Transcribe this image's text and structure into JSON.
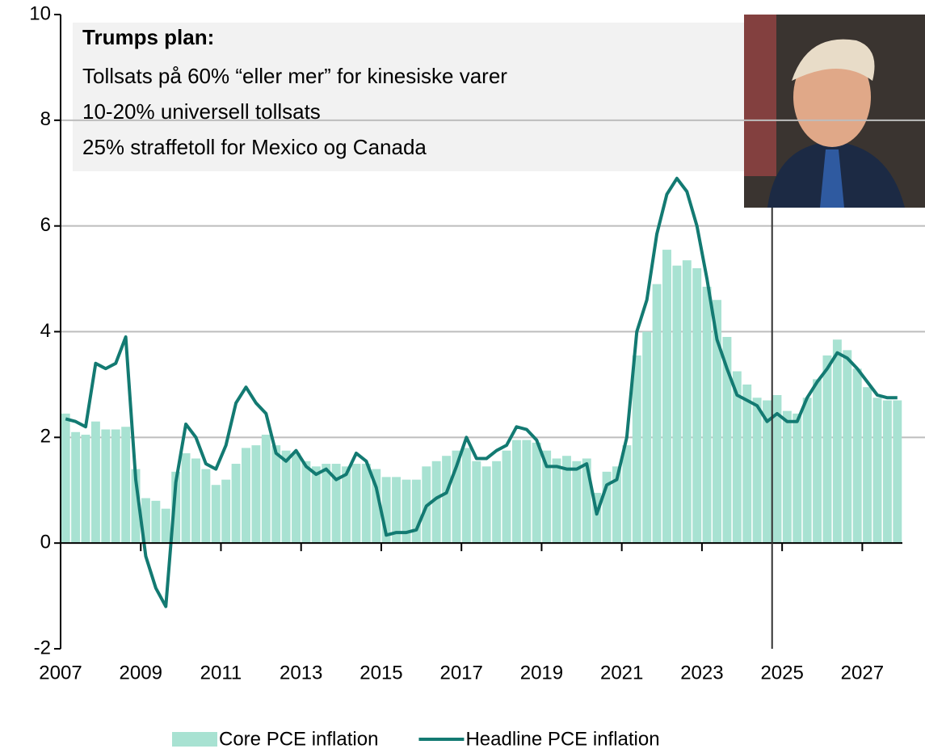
{
  "chart_data": {
    "type": "combo",
    "annotation": {
      "title": "Trumps plan:",
      "lines": [
        "Tollsats på 60% “eller mer” for kinesiske varer",
        "10-20% universell tollsats",
        "25% straffetoll for Mexico og Canada"
      ]
    },
    "x": [
      2007,
      2007.25,
      2007.5,
      2007.75,
      2008,
      2008.25,
      2008.5,
      2008.75,
      2009,
      2009.25,
      2009.5,
      2009.75,
      2010,
      2010.25,
      2010.5,
      2010.75,
      2011,
      2011.25,
      2011.5,
      2011.75,
      2012,
      2012.25,
      2012.5,
      2012.75,
      2013,
      2013.25,
      2013.5,
      2013.75,
      2014,
      2014.25,
      2014.5,
      2014.75,
      2015,
      2015.25,
      2015.5,
      2015.75,
      2016,
      2016.25,
      2016.5,
      2016.75,
      2017,
      2017.25,
      2017.5,
      2017.75,
      2018,
      2018.25,
      2018.5,
      2018.75,
      2019,
      2019.25,
      2019.5,
      2019.75,
      2020,
      2020.25,
      2020.5,
      2020.75,
      2021,
      2021.25,
      2021.5,
      2021.75,
      2022,
      2022.25,
      2022.5,
      2022.75,
      2023,
      2023.25,
      2023.5,
      2023.75,
      2024,
      2024.25,
      2024.5,
      2024.75,
      2025,
      2025.25,
      2025.5,
      2025.75,
      2026,
      2026.25,
      2026.5,
      2026.75,
      2027,
      2027.25,
      2027.5,
      2027.75
    ],
    "series": [
      {
        "name": "Core PCE inflation",
        "type": "bar",
        "color": "#a8e2d2",
        "values": [
          2.45,
          2.1,
          2.05,
          2.3,
          2.15,
          2.15,
          2.2,
          1.4,
          0.85,
          0.8,
          0.65,
          1.35,
          1.7,
          1.6,
          1.4,
          1.1,
          1.2,
          1.5,
          1.8,
          1.85,
          2.05,
          1.85,
          1.75,
          1.7,
          1.55,
          1.45,
          1.5,
          1.5,
          1.45,
          1.5,
          1.5,
          1.4,
          1.25,
          1.25,
          1.2,
          1.2,
          1.45,
          1.55,
          1.65,
          1.75,
          1.8,
          1.55,
          1.45,
          1.55,
          1.75,
          1.95,
          1.95,
          1.9,
          1.75,
          1.6,
          1.65,
          1.55,
          1.6,
          0.95,
          1.35,
          1.45,
          1.85,
          3.55,
          4.0,
          4.9,
          5.55,
          5.25,
          5.35,
          5.2,
          4.85,
          4.6,
          3.9,
          3.25,
          3.0,
          2.75,
          2.7,
          2.8,
          2.5,
          2.45,
          2.75,
          3.1,
          3.55,
          3.85,
          3.65,
          3.3,
          2.95,
          2.75,
          2.7,
          2.7
        ]
      },
      {
        "name": "Headline PCE inflation",
        "type": "line",
        "color": "#137a72",
        "values": [
          2.35,
          2.3,
          2.2,
          3.4,
          3.3,
          3.4,
          3.9,
          1.2,
          -0.25,
          -0.85,
          -1.2,
          1.15,
          2.25,
          2.0,
          1.5,
          1.4,
          1.85,
          2.65,
          2.95,
          2.65,
          2.45,
          1.7,
          1.55,
          1.75,
          1.45,
          1.3,
          1.4,
          1.2,
          1.3,
          1.7,
          1.55,
          1.05,
          0.15,
          0.2,
          0.2,
          0.25,
          0.7,
          0.85,
          0.95,
          1.45,
          2.0,
          1.6,
          1.6,
          1.75,
          1.85,
          2.2,
          2.15,
          1.95,
          1.45,
          1.45,
          1.4,
          1.4,
          1.5,
          0.55,
          1.1,
          1.2,
          2.0,
          4.0,
          4.6,
          5.85,
          6.6,
          6.9,
          6.65,
          6.0,
          5.0,
          3.85,
          3.3,
          2.8,
          2.7,
          2.6,
          2.3,
          2.45,
          2.3,
          2.3,
          2.75,
          3.05,
          3.3,
          3.6,
          3.5,
          3.3,
          3.05,
          2.8,
          2.75,
          2.75
        ]
      }
    ],
    "xlim": [
      2007,
      2028
    ],
    "xticks": [
      2007,
      2009,
      2011,
      2013,
      2015,
      2017,
      2019,
      2021,
      2023,
      2025,
      2027
    ],
    "ylim": [
      -2,
      10
    ],
    "yticks": [
      -2,
      0,
      2,
      4,
      6,
      8,
      10
    ],
    "grid": true,
    "vline_x": 2024.75
  }
}
